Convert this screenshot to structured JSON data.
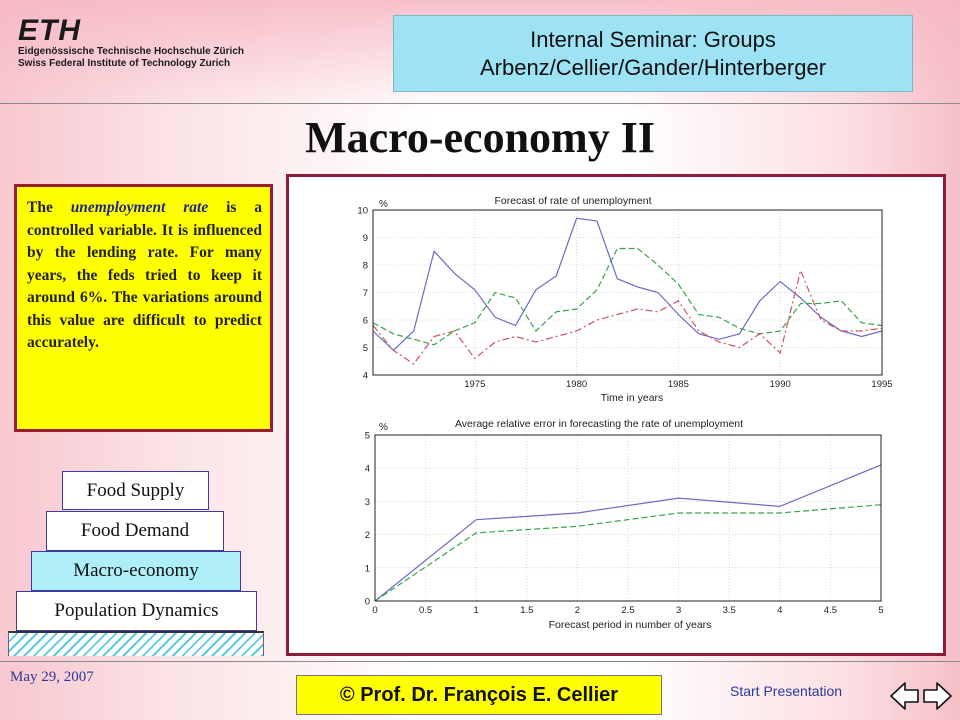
{
  "header": {
    "logo_mark": "ETH",
    "logo_line1": "Eidgenössische Technische Hochschule Zürich",
    "logo_line2": "Swiss Federal Institute of Technology Zurich",
    "seminar_line1": "Internal Seminar: Groups",
    "seminar_line2": "Arbenz/Cellier/Gander/Hinterberger"
  },
  "slide": {
    "title": "Macro-economy II",
    "text_prefix": "The ",
    "text_highlight": "unemployment rate",
    "text_suffix": " is a controlled variable. It is influenced by the lending rate. For many years, the feds tried to keep it around 6%. The variations around this value are difficult to predict accurately."
  },
  "nav": {
    "items": [
      {
        "label": "Food Supply",
        "active": false
      },
      {
        "label": "Food Demand",
        "active": false
      },
      {
        "label": "Macro-economy",
        "active": true
      },
      {
        "label": "Population Dynamics",
        "active": false
      }
    ]
  },
  "footer": {
    "date": "May 29, 2007",
    "copyright": "© Prof. Dr. François E. Cellier",
    "start_label": "Start Presentation",
    "back_icon": "arrow-left-icon",
    "forward_icon": "arrow-right-icon"
  },
  "colors": {
    "series_blue": "#6b6bc6",
    "series_green": "#3aa24a",
    "series_red": "#d05060"
  },
  "chart_data": [
    {
      "type": "line",
      "title": "Forecast of rate of unemployment",
      "xlabel": "Time in years",
      "ylabel": "%",
      "xlim": [
        1970,
        1995
      ],
      "ylim": [
        4,
        10
      ],
      "xticks": [
        1975,
        1980,
        1985,
        1990,
        1995
      ],
      "yticks": [
        4,
        5,
        6,
        7,
        8,
        9,
        10
      ],
      "grid": true,
      "x": [
        1970,
        1971,
        1972,
        1973,
        1974,
        1975,
        1976,
        1977,
        1978,
        1979,
        1980,
        1981,
        1982,
        1983,
        1984,
        1985,
        1986,
        1987,
        1988,
        1989,
        1990,
        1991,
        1992,
        1993,
        1994,
        1995
      ],
      "series": [
        {
          "style": "solid",
          "color": "#6b6bc6",
          "values": [
            5.6,
            4.9,
            5.6,
            8.5,
            7.7,
            7.1,
            6.1,
            5.8,
            7.1,
            7.6,
            9.7,
            9.6,
            7.5,
            7.2,
            7.0,
            6.2,
            5.5,
            5.3,
            5.5,
            6.7,
            7.4,
            6.8,
            6.1,
            5.6,
            5.4,
            5.6
          ]
        },
        {
          "style": "dashed",
          "color": "#3aa24a",
          "values": [
            5.9,
            5.5,
            5.3,
            5.1,
            5.6,
            5.9,
            7.0,
            6.8,
            5.6,
            6.3,
            6.4,
            7.1,
            8.6,
            8.6,
            8.0,
            7.3,
            6.2,
            6.1,
            5.7,
            5.5,
            5.6,
            6.6,
            6.6,
            6.7,
            5.9,
            5.8
          ]
        },
        {
          "style": "dashdot",
          "color": "#d05060",
          "values": [
            5.8,
            4.9,
            4.4,
            5.4,
            5.6,
            4.6,
            5.2,
            5.4,
            5.2,
            5.4,
            5.6,
            6.0,
            6.2,
            6.4,
            6.3,
            6.7,
            5.6,
            5.2,
            5.0,
            5.5,
            4.8,
            7.8,
            6.0,
            5.6,
            5.6,
            5.7
          ]
        }
      ]
    },
    {
      "type": "line",
      "title": "Average relative error in forecasting the rate of unemployment",
      "xlabel": "Forecast period in number of years",
      "ylabel": "%",
      "xlim": [
        0,
        5
      ],
      "ylim": [
        0,
        5
      ],
      "xticks": [
        0,
        0.5,
        1,
        1.5,
        2,
        2.5,
        3,
        3.5,
        4,
        4.5,
        5
      ],
      "yticks": [
        0,
        1,
        2,
        3,
        4,
        5
      ],
      "grid": true,
      "x": [
        0,
        1,
        2,
        3,
        4,
        5
      ],
      "series": [
        {
          "style": "solid",
          "color": "#6b6bc6",
          "values": [
            0,
            2.45,
            2.65,
            3.1,
            2.85,
            4.1
          ]
        },
        {
          "style": "dashed",
          "color": "#3aa24a",
          "values": [
            0,
            2.05,
            2.25,
            2.65,
            2.65,
            2.9
          ]
        }
      ]
    }
  ]
}
